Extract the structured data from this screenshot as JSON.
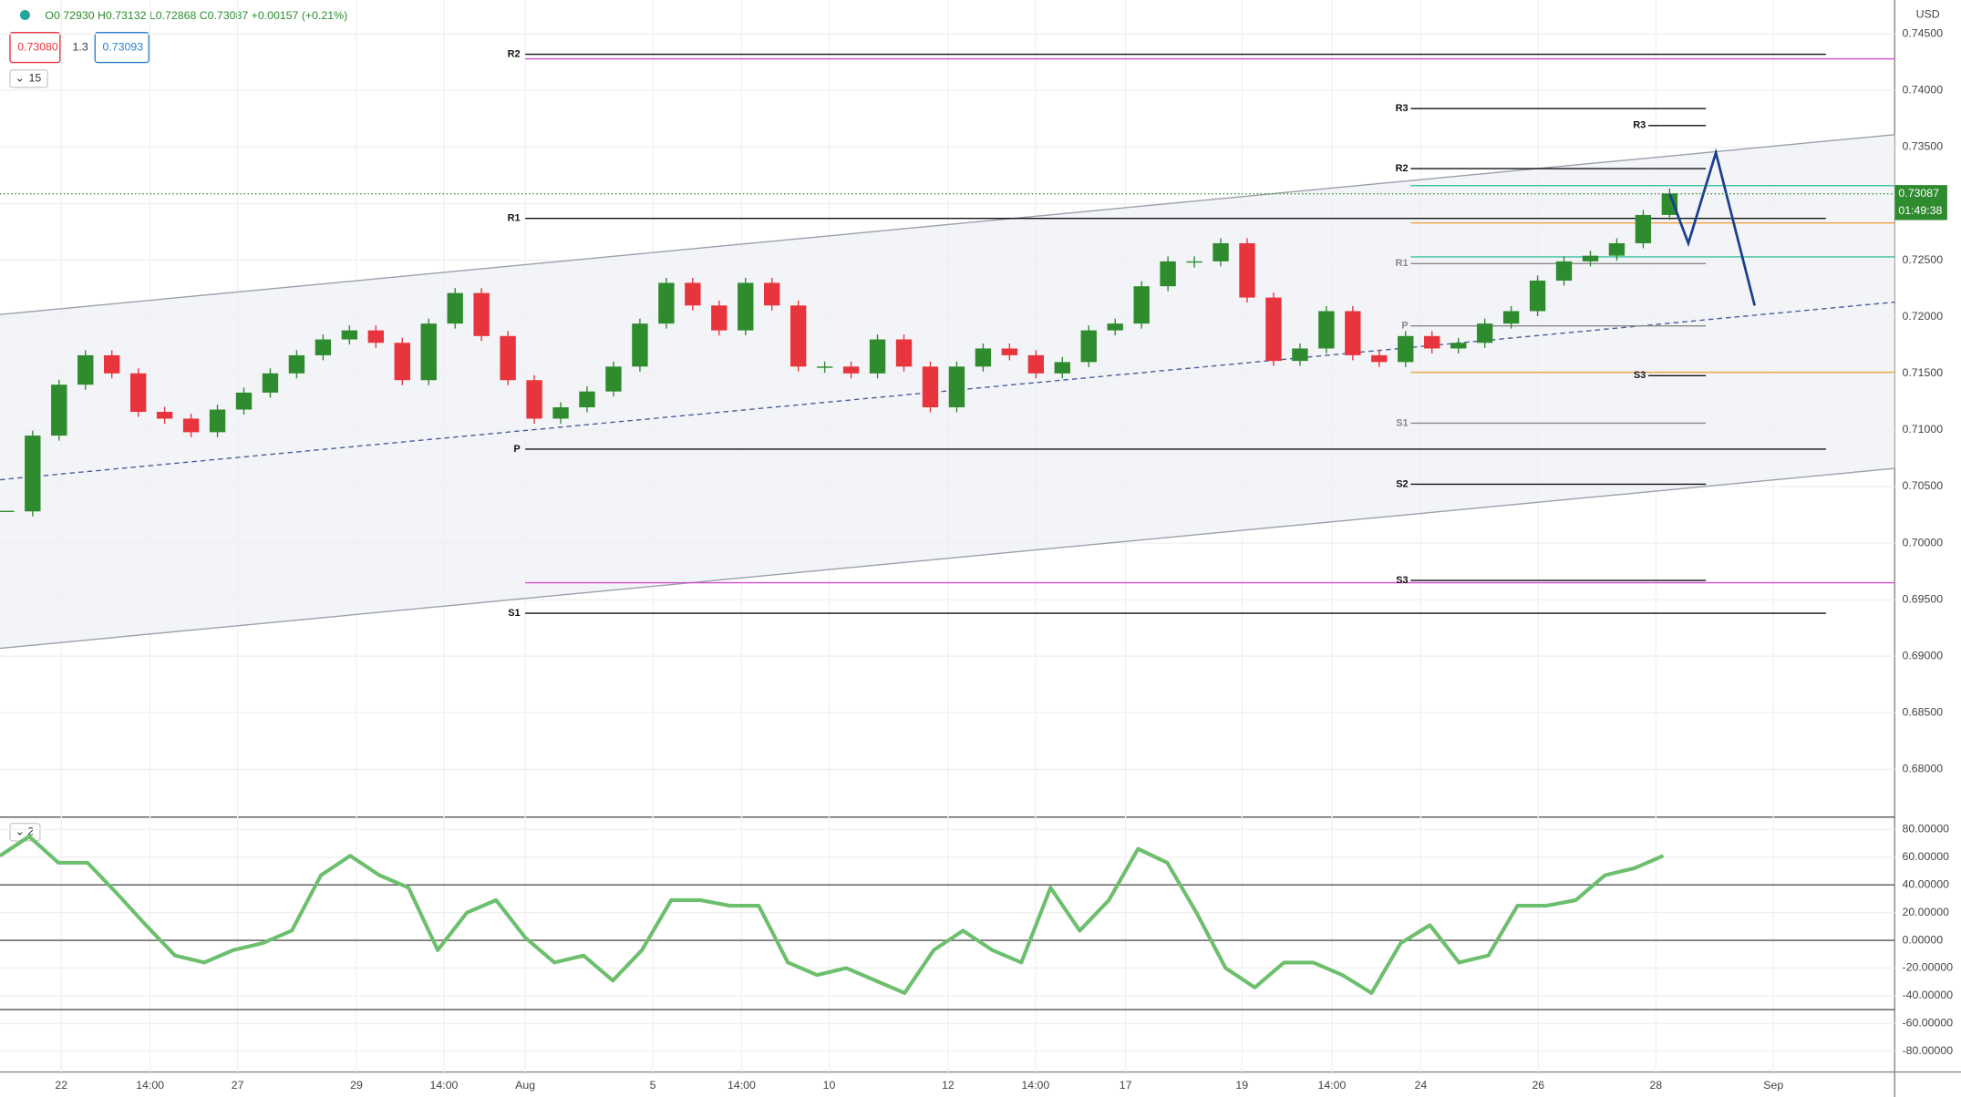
{
  "header": {
    "ohlc": "O0.72930 H0.73132 L0.72868 C0.73087 +0.00157 (+0.21%)",
    "sell": "0.73080",
    "spread": "1.3",
    "buy": "0.73093",
    "main_indicators": "15",
    "osc_indicators": "2"
  },
  "chart_data": [
    {
      "type": "candlestick",
      "currency": "USD",
      "close": [
        0.7028,
        0.7095,
        0.714,
        0.7166,
        0.715,
        0.7116,
        0.711,
        0.7098,
        0.7118,
        0.7133,
        0.715,
        0.7166,
        0.718,
        0.7188,
        0.7177,
        0.7144,
        0.7194,
        0.7221,
        0.7183,
        0.7144,
        0.711,
        0.712,
        0.7134,
        0.7156,
        0.7194,
        0.723,
        0.721,
        0.7188,
        0.723,
        0.721,
        0.7156,
        0.7156,
        0.715,
        0.718,
        0.7156,
        0.712,
        0.7156,
        0.7172,
        0.7166,
        0.715,
        0.716,
        0.7188,
        0.7194,
        0.7227,
        0.7249,
        0.7249,
        0.7265,
        0.7217,
        0.7161,
        0.7172,
        0.7205,
        0.7166,
        0.716,
        0.7183,
        0.7172,
        0.7177,
        0.7194,
        0.7205,
        0.7232,
        0.7249,
        0.7254,
        0.7265,
        0.729,
        0.7309
      ],
      "up_color": "#2e8b2e",
      "down_color": "#e8343c",
      "ylim": [
        0.676,
        0.748
      ],
      "yticks": [
        {
          "value": 0.745,
          "label": "0.74500"
        },
        {
          "value": 0.74,
          "label": "0.74000"
        },
        {
          "value": 0.735,
          "label": "0.73500"
        },
        {
          "value": 0.73,
          "label": "0.73000"
        },
        {
          "value": 0.725,
          "label": "0.72500"
        },
        {
          "value": 0.72,
          "label": "0.72000"
        },
        {
          "value": 0.715,
          "label": "0.71500"
        },
        {
          "value": 0.71,
          "label": "0.71000"
        },
        {
          "value": 0.705,
          "label": "0.70500"
        },
        {
          "value": 0.7,
          "label": "0.70000"
        },
        {
          "value": 0.695,
          "label": "0.69500"
        },
        {
          "value": 0.69,
          "label": "0.69000"
        },
        {
          "value": 0.685,
          "label": "0.68500"
        },
        {
          "value": 0.68,
          "label": "0.68000"
        }
      ],
      "x_labels": [
        "22",
        "14:00",
        "27",
        "29",
        "14:00",
        "Aug",
        "5",
        "14:00",
        "10",
        "12",
        "14:00",
        "17",
        "19",
        "14:00",
        "24",
        "26",
        "28",
        "Sep"
      ],
      "last_price": {
        "value": 0.73087,
        "label": "0.73087"
      },
      "countdown": "01:49:38",
      "weekly_pivots": [
        {
          "label": "R2",
          "value": 0.7432
        },
        {
          "label": "R1",
          "value": 0.7287
        },
        {
          "label": "P",
          "value": 0.7083
        },
        {
          "label": "S1",
          "value": 0.6938
        }
      ],
      "pivots": [
        {
          "label": "R3",
          "value": 0.7384,
          "color": "#111"
        },
        {
          "label": "R2",
          "value": 0.7331,
          "color": "#111"
        },
        {
          "label": "R1",
          "value": 0.7247,
          "color": "#888"
        },
        {
          "label": "P",
          "value": 0.7192,
          "color": "#888"
        },
        {
          "label": "S1",
          "value": 0.7106,
          "color": "#888"
        },
        {
          "label": "S2",
          "value": 0.7052,
          "color": "#111"
        },
        {
          "label": "S3",
          "value": 0.6967,
          "color": "#111"
        }
      ],
      "short_pivots": [
        {
          "label": "R3",
          "value": 0.7369
        },
        {
          "label": "S3",
          "value": 0.7148
        }
      ],
      "levels": [
        {
          "value": 0.7428,
          "color": "#d04fd0"
        },
        {
          "value": 0.6965,
          "color": "#d04fd0"
        },
        {
          "value": 0.7283,
          "color": "#f0a040"
        },
        {
          "value": 0.7151,
          "color": "#f0a040"
        },
        {
          "value": 0.7316,
          "color": "#40c0a0"
        },
        {
          "value": 0.7253,
          "color": "#40c0a0"
        }
      ],
      "channel": {
        "upper": [
          0.7202,
          0.7361
        ],
        "lower": [
          0.6907,
          0.7066
        ],
        "middle": [
          0.7056,
          0.7213
        ]
      },
      "projection": [
        0.7309,
        0.7265,
        0.7345,
        0.721
      ]
    },
    {
      "type": "line",
      "values": [
        61,
        75,
        56,
        56,
        34,
        11,
        -11,
        -16,
        -7,
        -2,
        7,
        47,
        61,
        47,
        38,
        -7,
        20,
        29,
        2,
        -16,
        -11,
        -29,
        -7,
        29,
        29,
        25,
        25,
        -16,
        -25,
        -20,
        -29,
        -38,
        -7,
        7,
        -7,
        -16,
        38,
        7,
        29,
        66,
        56,
        20,
        -20,
        -34,
        -16,
        -16,
        -25,
        -38,
        -2,
        11,
        -16,
        -11,
        25,
        25,
        29,
        47,
        52,
        61
      ],
      "color": "#6cbf6c",
      "ylim": [
        -95,
        88
      ],
      "yticks": [
        {
          "value": 80,
          "label": "80.00000"
        },
        {
          "value": 60,
          "label": "60.00000"
        },
        {
          "value": 40,
          "label": "40.00000"
        },
        {
          "value": 20,
          "label": "20.00000"
        },
        {
          "value": 0,
          "label": "0.00000"
        },
        {
          "value": -20,
          "label": "-20.00000"
        },
        {
          "value": -40,
          "label": "-40.00000"
        },
        {
          "value": -60,
          "label": "-60.00000"
        },
        {
          "value": -80,
          "label": "-80.00000"
        }
      ],
      "levels": [
        40,
        0,
        -50
      ]
    }
  ]
}
